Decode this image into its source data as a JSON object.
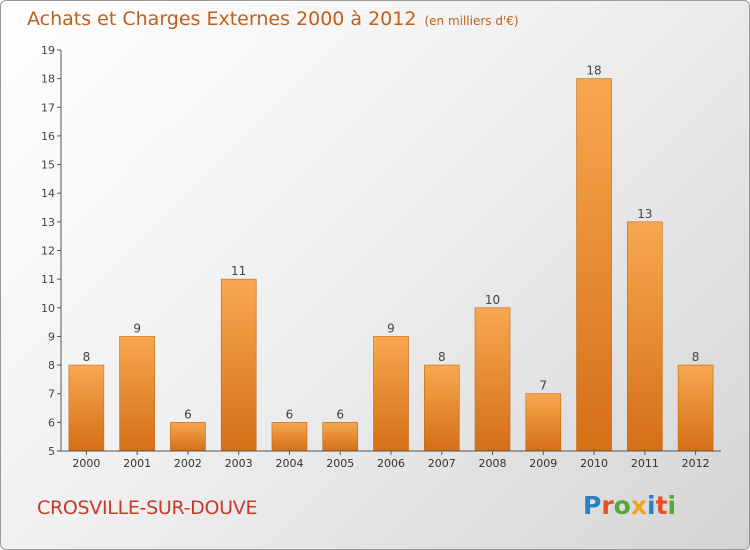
{
  "header": {
    "title": "Achats et Charges Externes 2000 à 2012",
    "unit": "(en milliers d'€)"
  },
  "footer": {
    "city": "CROSVILLE-SUR-DOUVE",
    "logo": "Proxiti"
  },
  "colors": {
    "bar_top": "#f7a850",
    "bar_bottom": "#d46f16",
    "title": "#c0601a",
    "city": "#c63a2a"
  },
  "chart_data": {
    "type": "bar",
    "title": "Achats et Charges Externes 2000 à 2012",
    "subtitle": "(en milliers d'€)",
    "categories": [
      "2000",
      "2001",
      "2002",
      "2003",
      "2004",
      "2005",
      "2006",
      "2007",
      "2008",
      "2009",
      "2010",
      "2011",
      "2012"
    ],
    "values": [
      8,
      9,
      6,
      11,
      6,
      6,
      9,
      8,
      10,
      7,
      18,
      13,
      8
    ],
    "ylim": [
      5,
      19
    ],
    "yticks": [
      5,
      6,
      7,
      8,
      9,
      10,
      11,
      12,
      13,
      14,
      15,
      16,
      17,
      18,
      19
    ],
    "grid": false,
    "legend": "none"
  }
}
